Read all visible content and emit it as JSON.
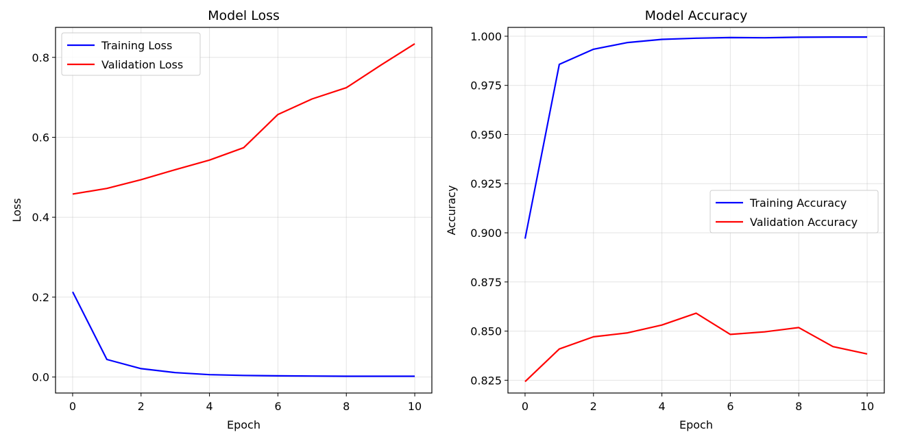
{
  "chart_data": [
    {
      "type": "line",
      "title": "Model Loss",
      "xlabel": "Epoch",
      "ylabel": "Loss",
      "x": [
        0,
        1,
        2,
        3,
        4,
        5,
        6,
        7,
        8,
        9,
        10
      ],
      "xlim": [
        -0.5,
        10.5
      ],
      "ylim": [
        -0.04,
        0.875
      ],
      "xticks": [
        0,
        2,
        4,
        6,
        8,
        10
      ],
      "yticks": [
        0.0,
        0.2,
        0.4,
        0.6,
        0.8
      ],
      "ytick_labels": [
        "0.0",
        "0.2",
        "0.4",
        "0.6",
        "0.8"
      ],
      "grid": true,
      "legend_position": "top-left",
      "series": [
        {
          "name": "Training Loss",
          "color": "#0000ff",
          "values": [
            0.213,
            0.044,
            0.021,
            0.011,
            0.006,
            0.004,
            0.003,
            0.0025,
            0.002,
            0.002,
            0.002
          ]
        },
        {
          "name": "Validation Loss",
          "color": "#ff0000",
          "values": [
            0.458,
            0.472,
            0.494,
            0.519,
            0.543,
            0.574,
            0.657,
            0.696,
            0.724,
            0.78,
            0.834
          ]
        }
      ]
    },
    {
      "type": "line",
      "title": "Model Accuracy",
      "xlabel": "Epoch",
      "ylabel": "Accuracy",
      "x": [
        0,
        1,
        2,
        3,
        4,
        5,
        6,
        7,
        8,
        9,
        10
      ],
      "xlim": [
        -0.5,
        10.5
      ],
      "ylim": [
        0.8185,
        1.0045
      ],
      "xticks": [
        0,
        2,
        4,
        6,
        8,
        10
      ],
      "yticks": [
        0.825,
        0.85,
        0.875,
        0.9,
        0.925,
        0.95,
        0.975,
        1.0
      ],
      "ytick_labels": [
        "0.825",
        "0.850",
        "0.875",
        "0.900",
        "0.925",
        "0.950",
        "0.975",
        "1.000"
      ],
      "grid": true,
      "legend_position": "center-right",
      "series": [
        {
          "name": "Training Accuracy",
          "color": "#0000ff",
          "values": [
            0.897,
            0.9857,
            0.9934,
            0.9968,
            0.9984,
            0.999,
            0.9993,
            0.9992,
            0.9995,
            0.9996,
            0.9996
          ]
        },
        {
          "name": "Validation Accuracy",
          "color": "#ff0000",
          "values": [
            0.8243,
            0.8409,
            0.8471,
            0.8491,
            0.8531,
            0.8591,
            0.8483,
            0.8496,
            0.8518,
            0.8421,
            0.8384
          ]
        }
      ]
    }
  ]
}
